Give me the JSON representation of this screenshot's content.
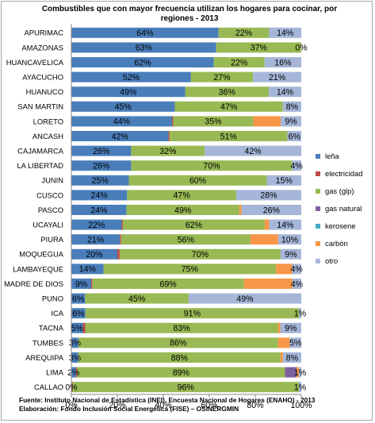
{
  "chart_data": {
    "type": "bar",
    "orientation": "horizontal",
    "stacked": "percent",
    "title": "Combustibles que con mayor frecuencia utilizan los hogares para cocinar, por regiones - 2013",
    "xlabel": "",
    "ylabel": "",
    "xlim": [
      0,
      100
    ],
    "x_ticks": [
      "0%",
      "20%",
      "40%",
      "60%",
      "80%",
      "100%"
    ],
    "grid": false,
    "legend_position": "right",
    "categories": [
      "APURIMAC",
      "AMAZONAS",
      "HUANCAVELICA",
      "AYACUCHO",
      "HUANUCO",
      "SAN MARTIN",
      "LORETO",
      "ANCASH",
      "CAJAMARCA",
      "LA LIBERTAD",
      "JUNIN",
      "CUSCO",
      "PASCO",
      "UCAYALI",
      "PIURA",
      "MOQUEGUA",
      "LAMBAYEQUE",
      "MADRE DE DIOS",
      "PUNO",
      "ICA",
      "TACNA",
      "TUMBES",
      "AREQUIPA",
      "LIMA",
      "CALLAO"
    ],
    "series": [
      {
        "name": "leña",
        "color": "#4a7ebb",
        "values": [
          64,
          63,
          62,
          52,
          49,
          45,
          44,
          42,
          26,
          26,
          25,
          24,
          24,
          22,
          21,
          20,
          14,
          9,
          6,
          6,
          5,
          3,
          3,
          2,
          0
        ],
        "labels": [
          "64%",
          "63%",
          "62%",
          "52%",
          "49%",
          "45%",
          "44%",
          "42%",
          "26%",
          "26%",
          "25%",
          "24%",
          "24%",
          "22%",
          "21%",
          "20%",
          "14%",
          "9%",
          "6%",
          "6%",
          "5%",
          "3%",
          "3%",
          "2%",
          "0%"
        ]
      },
      {
        "name": "electricidad",
        "color": "#be4b48",
        "values": [
          0,
          0,
          0,
          0,
          0,
          0,
          0.5,
          0.5,
          0,
          0,
          0,
          0,
          0,
          0.5,
          0.5,
          1,
          0,
          0.5,
          0,
          0,
          1,
          0,
          0,
          0.5,
          0.5
        ],
        "labels": [
          "",
          "",
          "",
          "",
          "",
          "",
          "",
          "",
          "",
          "",
          "",
          "",
          "",
          "",
          "",
          "",
          "",
          "",
          "",
          "",
          "",
          "",
          "",
          "",
          ""
        ]
      },
      {
        "name": "gas (glp)",
        "color": "#98b954",
        "values": [
          22,
          37,
          22,
          27,
          36,
          47,
          35,
          51,
          32,
          70,
          60,
          47,
          49,
          62,
          56,
          70,
          75,
          69,
          45,
          91,
          83,
          86,
          88,
          89,
          96
        ],
        "labels": [
          "22%",
          "37%",
          "22%",
          "27%",
          "36%",
          "47%",
          "35%",
          "51%",
          "32%",
          "70%",
          "60%",
          "47%",
          "49%",
          "62%",
          "56%",
          "70%",
          "75%",
          "69%",
          "45%",
          "91%",
          "83%",
          "86%",
          "88%",
          "89%",
          "96%"
        ]
      },
      {
        "name": "gas natural",
        "color": "#7d60a0",
        "values": [
          0,
          0,
          0,
          0,
          0,
          0,
          0,
          0,
          0,
          0,
          0,
          0,
          0,
          0,
          0,
          0,
          0,
          0,
          0,
          0,
          0,
          0,
          0,
          5,
          0
        ],
        "labels": [
          "",
          "",
          "",
          "",
          "",
          "",
          "",
          "",
          "",
          "",
          "",
          "",
          "",
          "",
          "",
          "",
          "",
          "",
          "",
          "",
          "",
          "",
          "",
          "",
          ""
        ]
      },
      {
        "name": "kerosene",
        "color": "#46aac4",
        "values": [
          0,
          0,
          0,
          0,
          0,
          0,
          0,
          0,
          0,
          0,
          0,
          0,
          0,
          0,
          0,
          0,
          0,
          0,
          0,
          0,
          0,
          0,
          0,
          0,
          0
        ],
        "labels": [
          "",
          "",
          "",
          "",
          "",
          "",
          "",
          "",
          "",
          "",
          "",
          "",
          "",
          "",
          "",
          "",
          "",
          "",
          "",
          "",
          "",
          "",
          "",
          "",
          ""
        ]
      },
      {
        "name": "carbón",
        "color": "#f79646",
        "values": [
          0,
          0,
          0,
          0,
          0,
          0,
          12,
          0,
          0,
          0,
          0,
          0,
          1,
          2,
          12,
          0,
          7,
          22,
          0,
          0,
          1,
          5,
          1,
          1,
          0
        ],
        "labels": [
          "",
          "",
          "",
          "",
          "",
          "",
          "",
          "",
          "",
          "",
          "",
          "",
          "",
          "",
          "",
          "",
          "",
          "",
          "",
          "",
          "",
          "",
          "",
          "",
          ""
        ]
      },
      {
        "name": "otro",
        "color": "#a5b6d8",
        "values": [
          14,
          0,
          16,
          21,
          14,
          8,
          9,
          6,
          42,
          4,
          15,
          28,
          26,
          14,
          10,
          9,
          4,
          4,
          49,
          1,
          9,
          5,
          8,
          1,
          1
        ],
        "labels": [
          "14%",
          "0%",
          "16%",
          "21%",
          "14%",
          "8%",
          "9%",
          "6%",
          "42%",
          "4%",
          "15%",
          "28%",
          "26%",
          "14%",
          "10%",
          "9%",
          "4%",
          "4%",
          "49%",
          "1%",
          "9%",
          "5%",
          "8%",
          "1%",
          "1%"
        ]
      }
    ]
  },
  "footer": {
    "source": "Fuente: Instituto Nacional de Estadística (INEI). Encuesta Nacional de Hogares (ENAHO) - 2013",
    "elaboration": "Elaboración: Fondo Inclusión Social Energética (FISE) – OSINERGMIN"
  }
}
